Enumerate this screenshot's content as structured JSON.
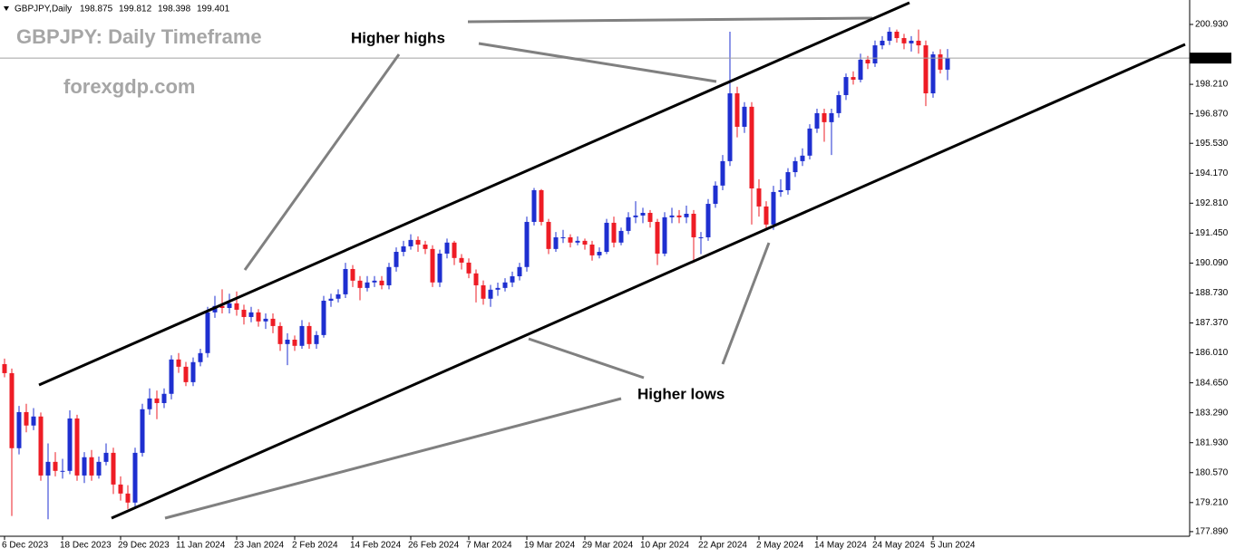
{
  "chart_data": {
    "type": "candlestick",
    "symbol": "GBPJPY,Daily",
    "title": "GBPJPY: Daily Timeframe",
    "watermark": "forexgdp.com",
    "annotations": [
      "Higher highs",
      "Higher lows"
    ],
    "up_color": "#1e2fd0",
    "down_color": "#ee1c25",
    "categories": [
      "6 Dec 2023",
      null,
      null,
      null,
      null,
      null,
      null,
      null,
      "18 Dec 2023",
      null,
      null,
      null,
      null,
      null,
      null,
      null,
      "29 Dec 2023",
      null,
      null,
      null,
      null,
      null,
      null,
      null,
      "11 Jan 2024",
      null,
      null,
      null,
      null,
      null,
      null,
      null,
      "23 Jan 2024",
      null,
      null,
      null,
      null,
      null,
      null,
      null,
      "2 Feb 2024",
      null,
      null,
      null,
      null,
      null,
      null,
      null,
      "14 Feb 2024",
      null,
      null,
      null,
      null,
      null,
      null,
      null,
      "26 Feb 2024",
      null,
      null,
      null,
      null,
      null,
      null,
      null,
      "7 Mar 2024",
      null,
      null,
      null,
      null,
      null,
      null,
      null,
      "19 Mar 2024",
      null,
      null,
      null,
      null,
      null,
      null,
      null,
      "29 Mar 2024",
      null,
      null,
      null,
      null,
      null,
      null,
      null,
      "10 Apr 2024",
      null,
      null,
      null,
      null,
      null,
      null,
      null,
      "22 Apr 2024",
      null,
      null,
      null,
      null,
      null,
      null,
      null,
      "2 May 2024",
      null,
      null,
      null,
      null,
      null,
      null,
      null,
      "14 May 2024",
      null,
      null,
      null,
      null,
      null,
      null,
      null,
      "24 May 2024",
      null,
      null,
      null,
      null,
      null,
      null,
      null,
      "5 Jun 2024",
      null,
      null
    ],
    "open": [
      185.5,
      185.09,
      181.68,
      183.32,
      182.71,
      183.12,
      180.44,
      181.06,
      180.65,
      180.65,
      183.03,
      180.44,
      181.27,
      180.44,
      181.06,
      181.47,
      180.03,
      179.62,
      179.21,
      181.47,
      183.45,
      183.94,
      183.73,
      184.15,
      185.71,
      185.38,
      184.68,
      185.59,
      186.0,
      187.85,
      188.14,
      188.05,
      188.26,
      187.97,
      187.64,
      187.85,
      187.44,
      187.56,
      187.23,
      186.41,
      186.61,
      186.33,
      187.23,
      186.41,
      186.82,
      188.38,
      188.47,
      188.67,
      189.82,
      189.29,
      188.96,
      189.21,
      189.29,
      189.08,
      189.91,
      190.6,
      190.85,
      191.14,
      190.93,
      190.73,
      189.21,
      190.52,
      191.02,
      190.32,
      190.11,
      189.62,
      189.08,
      188.47,
      188.88,
      188.96,
      189.21,
      189.49,
      189.91,
      191.96,
      193.4,
      191.96,
      190.73,
      191.26,
      191.26,
      191.02,
      191.1,
      190.93,
      190.44,
      190.6,
      191.92,
      191.02,
      191.55,
      192.17,
      192.25,
      192.37,
      191.96,
      190.52,
      192.17,
      192.25,
      192.17,
      192.33,
      191.26,
      191.26,
      192.78,
      193.61,
      194.72,
      197.8,
      196.28,
      197.19,
      193.48,
      192.66,
      191.84,
      193.32,
      193.4,
      194.22,
      194.72,
      194.97,
      196.2,
      196.9,
      196.49,
      196.9,
      197.72,
      198.54,
      198.42,
      199.33,
      199.16,
      199.98,
      200.19,
      200.6,
      200.31,
      200.07,
      200.19,
      199.98,
      197.8,
      199.57,
      198.875
    ],
    "high": [
      185.75,
      185.3,
      183.6,
      183.7,
      183.5,
      183.3,
      181.9,
      181.5,
      181.2,
      183.4,
      183.2,
      181.5,
      181.6,
      181.3,
      181.9,
      181.7,
      180.4,
      180.0,
      181.7,
      183.7,
      184.4,
      184.3,
      184.4,
      185.9,
      186.0,
      185.6,
      185.8,
      186.2,
      188.1,
      188.6,
      188.9,
      188.7,
      188.8,
      188.2,
      188.1,
      188.0,
      187.8,
      187.8,
      187.4,
      186.9,
      186.8,
      187.5,
      187.4,
      187.0,
      188.6,
      188.7,
      188.9,
      190.1,
      190.0,
      189.5,
      189.5,
      189.5,
      189.5,
      190.1,
      190.8,
      191.1,
      191.4,
      191.3,
      191.1,
      190.9,
      190.7,
      191.2,
      191.1,
      190.5,
      190.3,
      189.8,
      189.3,
      189.1,
      189.2,
      189.4,
      189.7,
      190.1,
      192.2,
      193.5,
      193.45,
      192.1,
      191.5,
      191.6,
      191.4,
      191.3,
      191.2,
      191.1,
      190.8,
      192.1,
      192.2,
      191.7,
      192.4,
      192.9,
      192.6,
      192.5,
      192.1,
      192.4,
      192.6,
      192.5,
      192.7,
      192.5,
      191.5,
      193.0,
      193.8,
      195.0,
      200.6,
      198.1,
      197.4,
      197.4,
      193.9,
      192.9,
      193.6,
      193.9,
      194.4,
      194.9,
      195.3,
      196.4,
      197.1,
      197.1,
      197.1,
      197.9,
      198.7,
      198.8,
      199.6,
      199.5,
      200.2,
      200.4,
      200.8,
      200.7,
      200.5,
      200.4,
      200.7,
      200.2,
      199.7,
      199.8,
      199.812
    ],
    "low": [
      184.9,
      178.6,
      181.4,
      182.4,
      182.5,
      180.2,
      178.45,
      180.4,
      180.3,
      180.5,
      180.2,
      180.1,
      180.2,
      180.3,
      180.9,
      179.6,
      179.3,
      178.92,
      179.0,
      181.3,
      183.2,
      183.0,
      183.5,
      183.9,
      185.1,
      184.5,
      184.5,
      185.4,
      185.8,
      187.6,
      187.8,
      187.8,
      187.7,
      187.3,
      187.4,
      187.2,
      187.1,
      186.9,
      186.1,
      185.45,
      186.1,
      186.2,
      186.2,
      186.2,
      186.7,
      188.1,
      188.3,
      188.5,
      189.0,
      188.4,
      188.8,
      189.0,
      188.9,
      188.9,
      189.7,
      190.4,
      190.7,
      190.6,
      190.5,
      189.0,
      189.0,
      190.3,
      190.0,
      189.8,
      189.4,
      188.3,
      188.2,
      188.1,
      188.6,
      188.8,
      189.0,
      189.3,
      189.7,
      191.8,
      191.8,
      190.5,
      190.6,
      191.0,
      190.8,
      190.9,
      190.7,
      190.2,
      190.3,
      190.5,
      190.8,
      190.9,
      191.4,
      191.9,
      191.9,
      191.7,
      190.0,
      190.4,
      191.9,
      191.9,
      191.9,
      190.1,
      190.5,
      191.1,
      192.6,
      193.4,
      194.5,
      195.8,
      196.0,
      191.84,
      192.2,
      191.67,
      191.6,
      193.1,
      193.2,
      194.0,
      194.5,
      194.8,
      196.0,
      195.6,
      195.0,
      196.7,
      197.5,
      198.2,
      198.3,
      198.9,
      199.0,
      199.8,
      200.0,
      200.1,
      199.8,
      199.7,
      199.6,
      197.22,
      197.6,
      198.7,
      198.398
    ],
    "close": [
      185.09,
      181.68,
      183.32,
      182.71,
      183.12,
      180.44,
      181.06,
      180.65,
      180.65,
      183.03,
      180.44,
      181.27,
      180.44,
      181.06,
      181.47,
      180.03,
      179.62,
      179.21,
      181.47,
      183.45,
      183.94,
      183.73,
      184.15,
      185.71,
      185.38,
      184.68,
      185.59,
      186.0,
      187.85,
      188.14,
      188.05,
      188.26,
      187.97,
      187.64,
      187.85,
      187.44,
      187.56,
      187.23,
      186.41,
      186.61,
      186.33,
      187.23,
      186.41,
      186.82,
      188.38,
      188.47,
      188.67,
      189.82,
      189.29,
      188.96,
      189.21,
      189.29,
      189.08,
      189.91,
      190.6,
      190.85,
      191.14,
      190.93,
      190.73,
      189.21,
      190.52,
      191.02,
      190.32,
      190.11,
      189.62,
      189.08,
      188.47,
      188.88,
      188.96,
      189.21,
      189.49,
      189.91,
      191.96,
      193.4,
      191.96,
      190.73,
      191.26,
      191.26,
      191.02,
      191.1,
      190.93,
      190.44,
      190.6,
      191.92,
      191.02,
      191.55,
      192.17,
      192.25,
      192.37,
      191.96,
      190.52,
      192.17,
      192.25,
      192.17,
      192.33,
      191.26,
      191.26,
      192.78,
      193.61,
      194.72,
      197.8,
      196.28,
      197.19,
      193.48,
      192.66,
      191.84,
      193.32,
      193.4,
      194.22,
      194.72,
      194.97,
      196.2,
      196.9,
      196.49,
      196.9,
      197.72,
      198.54,
      198.42,
      199.33,
      199.16,
      199.98,
      200.19,
      200.6,
      200.31,
      200.07,
      200.19,
      199.98,
      197.8,
      199.57,
      198.875,
      199.401
    ],
    "ylim": [
      177.68,
      202.04
    ],
    "yticks": [
      {
        "value": 200.93,
        "label": "200.930"
      },
      {
        "value": 198.21,
        "label": "198.210"
      },
      {
        "value": 196.87,
        "label": "196.870"
      },
      {
        "value": 195.53,
        "label": "195.530"
      },
      {
        "value": 194.17,
        "label": "194.170"
      },
      {
        "value": 192.81,
        "label": "192.810"
      },
      {
        "value": 191.45,
        "label": "191.450"
      },
      {
        "value": 190.09,
        "label": "190.090"
      },
      {
        "value": 188.73,
        "label": "188.730"
      },
      {
        "value": 187.37,
        "label": "187.370"
      },
      {
        "value": 186.01,
        "label": "186.010"
      },
      {
        "value": 184.65,
        "label": "184.650"
      },
      {
        "value": 183.29,
        "label": "183.290"
      },
      {
        "value": 181.93,
        "label": "181.930"
      },
      {
        "value": 180.57,
        "label": "180.570"
      },
      {
        "value": 179.21,
        "label": "179.210"
      },
      {
        "value": 177.89,
        "label": "177.890"
      }
    ]
  }
}
